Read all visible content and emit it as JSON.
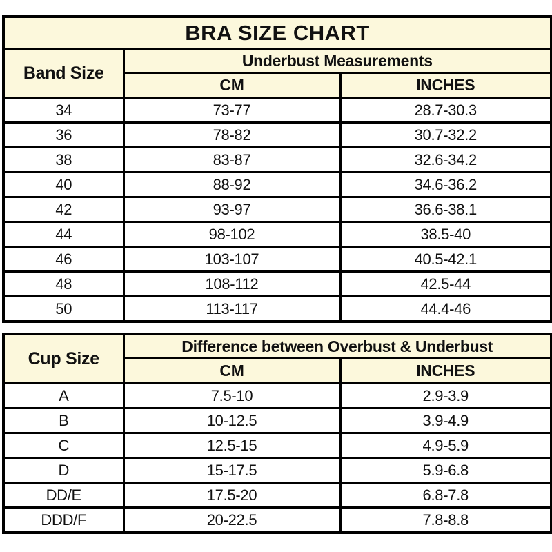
{
  "colors": {
    "header_bg": "#FCF8DC",
    "cell_bg": "#FFFFFF",
    "border": "#000000",
    "text": "#111111"
  },
  "chart_data": [
    {
      "type": "table",
      "title": "BRA SIZE CHART",
      "header": {
        "row_label": "Band Size",
        "group": "Underbust Measurements",
        "col_cm": "CM",
        "col_inches": "INCHES"
      },
      "rows": [
        {
          "band_size": "34",
          "cm": "73-77",
          "inches": "28.7-30.3"
        },
        {
          "band_size": "36",
          "cm": "78-82",
          "inches": "30.7-32.2"
        },
        {
          "band_size": "38",
          "cm": "83-87",
          "inches": "32.6-34.2"
        },
        {
          "band_size": "40",
          "cm": "88-92",
          "inches": "34.6-36.2"
        },
        {
          "band_size": "42",
          "cm": "93-97",
          "inches": "36.6-38.1"
        },
        {
          "band_size": "44",
          "cm": "98-102",
          "inches": "38.5-40"
        },
        {
          "band_size": "46",
          "cm": "103-107",
          "inches": "40.5-42.1"
        },
        {
          "band_size": "48",
          "cm": "108-112",
          "inches": "42.5-44"
        },
        {
          "band_size": "50",
          "cm": "113-117",
          "inches": "44.4-46"
        }
      ]
    },
    {
      "type": "table",
      "header": {
        "row_label": "Cup Size",
        "group": "Difference between Overbust & Underbust",
        "col_cm": "CM",
        "col_inches": "INCHES"
      },
      "rows": [
        {
          "cup_size": "A",
          "cm": "7.5-10",
          "inches": "2.9-3.9"
        },
        {
          "cup_size": "B",
          "cm": "10-12.5",
          "inches": "3.9-4.9"
        },
        {
          "cup_size": "C",
          "cm": "12.5-15",
          "inches": "4.9-5.9"
        },
        {
          "cup_size": "D",
          "cm": "15-17.5",
          "inches": "5.9-6.8"
        },
        {
          "cup_size": "DD/E",
          "cm": "17.5-20",
          "inches": "6.8-7.8"
        },
        {
          "cup_size": "DDD/F",
          "cm": "20-22.5",
          "inches": "7.8-8.8"
        }
      ]
    }
  ]
}
